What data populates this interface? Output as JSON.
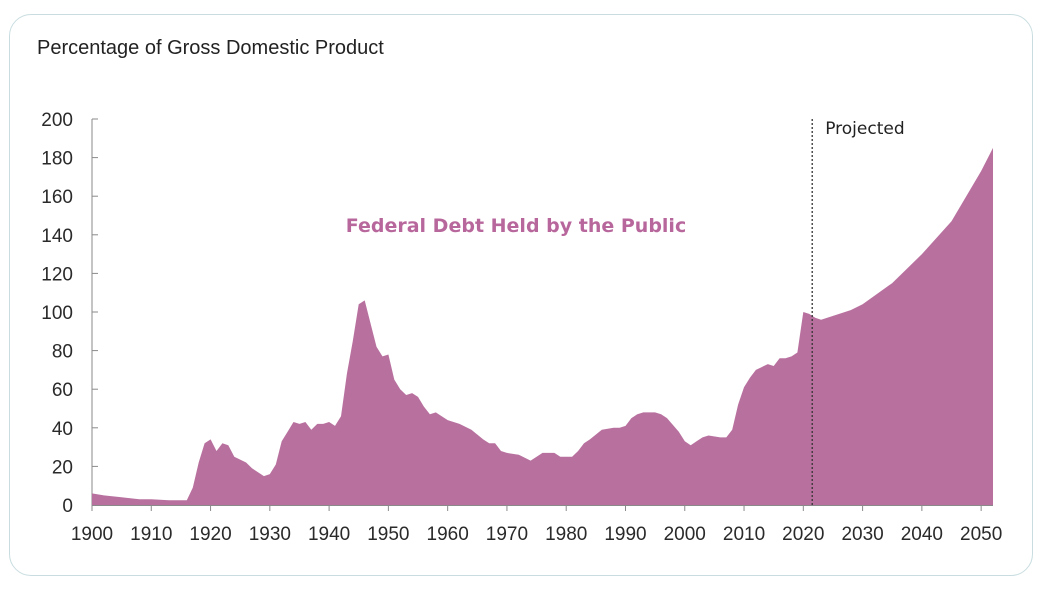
{
  "subtitle": "Percentage of Gross Domestic Product",
  "colors": {
    "area": "#b8719f",
    "label": "#b8679c",
    "axis": "#8a8a8a",
    "divider": "#333333"
  },
  "chart_data": {
    "type": "area",
    "title": "",
    "subtitle": "Percentage of Gross Domestic Product",
    "xlabel": "",
    "ylabel": "",
    "xlim": [
      1900,
      2052
    ],
    "ylim": [
      0,
      200
    ],
    "x_ticks": [
      1900,
      1910,
      1920,
      1930,
      1940,
      1950,
      1960,
      1970,
      1980,
      1990,
      2000,
      2010,
      2020,
      2030,
      2040,
      2050
    ],
    "y_ticks": [
      0,
      20,
      40,
      60,
      80,
      100,
      120,
      140,
      160,
      180,
      200
    ],
    "grid": false,
    "series": [
      {
        "name": "Federal Debt Held by the Public",
        "points": [
          [
            1900,
            6
          ],
          [
            1902,
            5
          ],
          [
            1905,
            4
          ],
          [
            1908,
            3
          ],
          [
            1910,
            3
          ],
          [
            1913,
            2.5
          ],
          [
            1916,
            2.5
          ],
          [
            1917,
            9
          ],
          [
            1918,
            22
          ],
          [
            1919,
            32
          ],
          [
            1920,
            34
          ],
          [
            1921,
            28
          ],
          [
            1922,
            32
          ],
          [
            1923,
            31
          ],
          [
            1924,
            25
          ],
          [
            1926,
            22
          ],
          [
            1927,
            19
          ],
          [
            1928,
            17
          ],
          [
            1929,
            15
          ],
          [
            1930,
            16
          ],
          [
            1931,
            21
          ],
          [
            1932,
            33
          ],
          [
            1933,
            38
          ],
          [
            1934,
            43
          ],
          [
            1935,
            42
          ],
          [
            1936,
            43
          ],
          [
            1937,
            39
          ],
          [
            1938,
            42
          ],
          [
            1939,
            42
          ],
          [
            1940,
            43
          ],
          [
            1941,
            41
          ],
          [
            1942,
            46
          ],
          [
            1943,
            68
          ],
          [
            1944,
            85
          ],
          [
            1945,
            104
          ],
          [
            1946,
            106
          ],
          [
            1947,
            94
          ],
          [
            1948,
            82
          ],
          [
            1949,
            77
          ],
          [
            1950,
            78
          ],
          [
            1951,
            65
          ],
          [
            1952,
            60
          ],
          [
            1953,
            57
          ],
          [
            1954,
            58
          ],
          [
            1955,
            56
          ],
          [
            1956,
            51
          ],
          [
            1957,
            47
          ],
          [
            1958,
            48
          ],
          [
            1959,
            46
          ],
          [
            1960,
            44
          ],
          [
            1962,
            42
          ],
          [
            1964,
            39
          ],
          [
            1966,
            34
          ],
          [
            1967,
            32
          ],
          [
            1968,
            32
          ],
          [
            1969,
            28
          ],
          [
            1970,
            27
          ],
          [
            1972,
            26
          ],
          [
            1974,
            23
          ],
          [
            1975,
            25
          ],
          [
            1976,
            27
          ],
          [
            1978,
            27
          ],
          [
            1979,
            25
          ],
          [
            1981,
            25
          ],
          [
            1982,
            28
          ],
          [
            1983,
            32
          ],
          [
            1984,
            34
          ],
          [
            1986,
            39
          ],
          [
            1988,
            40
          ],
          [
            1989,
            40
          ],
          [
            1990,
            41
          ],
          [
            1991,
            45
          ],
          [
            1992,
            47
          ],
          [
            1993,
            48
          ],
          [
            1995,
            48
          ],
          [
            1996,
            47
          ],
          [
            1997,
            45
          ],
          [
            1999,
            38
          ],
          [
            2000,
            33
          ],
          [
            2001,
            31
          ],
          [
            2002,
            33
          ],
          [
            2003,
            35
          ],
          [
            2004,
            36
          ],
          [
            2006,
            35
          ],
          [
            2007,
            35
          ],
          [
            2008,
            39
          ],
          [
            2009,
            52
          ],
          [
            2010,
            61
          ],
          [
            2011,
            66
          ],
          [
            2012,
            70
          ],
          [
            2014,
            73
          ],
          [
            2015,
            72
          ],
          [
            2016,
            76
          ],
          [
            2017,
            76
          ],
          [
            2018,
            77
          ],
          [
            2019,
            79
          ],
          [
            2020,
            100
          ],
          [
            2021,
            99
          ],
          [
            2022,
            97
          ],
          [
            2023,
            96
          ],
          [
            2025,
            98
          ],
          [
            2028,
            101
          ],
          [
            2030,
            104
          ],
          [
            2035,
            115
          ],
          [
            2040,
            130
          ],
          [
            2045,
            147
          ],
          [
            2050,
            173
          ],
          [
            2052,
            185
          ]
        ]
      }
    ],
    "annotations": [
      {
        "text": "Federal Debt Held by the Public"
      },
      {
        "text": "Projected",
        "x": 2021.5
      }
    ]
  }
}
